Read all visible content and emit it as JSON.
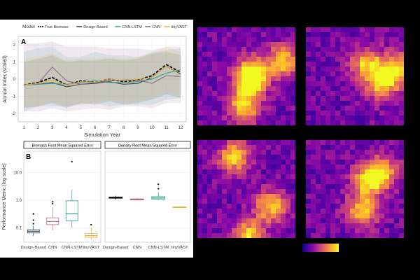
{
  "chart_data": [
    {
      "type": "line",
      "panel_label": "A",
      "legend_title": "Model",
      "xlabel": "Simulation Year",
      "ylabel": "Annual Index (scaled)",
      "x": [
        1,
        2,
        3,
        4,
        5,
        6,
        7,
        8,
        9,
        10,
        11,
        12
      ],
      "ylim": [
        -2.5,
        2.5
      ],
      "yticks": [
        -2,
        -1,
        0,
        1,
        2
      ],
      "series": [
        {
          "name": "True Biomass",
          "color": "#000000",
          "dashed": true,
          "values": [
            -0.35,
            -0.2,
            0.1,
            -0.35,
            -0.1,
            -0.2,
            0.0,
            -0.15,
            -0.05,
            0.2,
            0.85,
            0.4
          ],
          "band": null
        },
        {
          "name": "Design-Based",
          "color": "#2a3b4c",
          "dashed": false,
          "values": [
            -0.35,
            -0.3,
            -0.2,
            -0.45,
            -0.3,
            -0.25,
            -0.15,
            -0.3,
            -0.25,
            0.1,
            0.75,
            0.3
          ],
          "band": [
            [
              -1.7,
              1.0
            ],
            [
              -1.6,
              1.2
            ],
            [
              -1.4,
              1.4
            ],
            [
              -1.7,
              1.0
            ],
            [
              -1.4,
              1.1
            ],
            [
              -1.5,
              1.1
            ],
            [
              -1.3,
              1.2
            ],
            [
              -1.5,
              1.1
            ],
            [
              -1.4,
              1.2
            ],
            [
              -1.2,
              1.5
            ],
            [
              -0.9,
              1.6
            ],
            [
              -1.1,
              1.4
            ]
          ]
        },
        {
          "name": "CNN-LSTM",
          "color": "#2e9c8f",
          "dashed": false,
          "values": [
            -0.35,
            -0.3,
            -0.25,
            -0.3,
            -0.2,
            -0.1,
            -0.2,
            -0.2,
            -0.15,
            0.0,
            0.35,
            0.55
          ],
          "band": [
            [
              -1.9,
              1.6
            ],
            [
              -1.6,
              1.8
            ],
            [
              -1.6,
              1.9
            ],
            [
              -1.6,
              1.3
            ],
            [
              -1.5,
              1.3
            ],
            [
              -1.4,
              1.6
            ],
            [
              -1.6,
              1.4
            ],
            [
              -1.5,
              1.4
            ],
            [
              -1.5,
              1.3
            ],
            [
              -1.5,
              1.6
            ],
            [
              -1.2,
              1.7
            ],
            [
              -1.1,
              1.8
            ]
          ]
        },
        {
          "name": "CNN",
          "color": "#8c5a8a",
          "dashed": false,
          "values": [
            -0.35,
            -0.25,
            0.7,
            -0.1,
            -0.3,
            -0.2,
            -0.1,
            -0.05,
            -0.05,
            -0.25,
            0.2,
            0.15
          ],
          "band": [
            [
              -1.9,
              2.1
            ],
            [
              -1.9,
              2.1
            ],
            [
              -1.7,
              2.2
            ],
            [
              -1.9,
              1.9
            ],
            [
              -1.8,
              1.9
            ],
            [
              -1.7,
              1.9
            ],
            [
              -1.8,
              1.8
            ],
            [
              -1.6,
              1.8
            ],
            [
              -1.6,
              1.8
            ],
            [
              -1.7,
              1.7
            ],
            [
              -1.4,
              1.9
            ],
            [
              -1.4,
              1.9
            ]
          ]
        },
        {
          "name": "tinyVAST",
          "color": "#f0b030",
          "dashed": false,
          "values": [
            -0.35,
            -0.25,
            -0.05,
            -0.35,
            -0.15,
            -0.2,
            0.0,
            -0.1,
            0.0,
            0.1,
            0.75,
            0.35
          ],
          "band": [
            [
              -1.7,
              1.2
            ],
            [
              -1.6,
              1.3
            ],
            [
              -1.3,
              1.5
            ],
            [
              -1.6,
              1.1
            ],
            [
              -1.4,
              1.2
            ],
            [
              -1.4,
              1.2
            ],
            [
              -1.2,
              1.3
            ],
            [
              -1.4,
              1.2
            ],
            [
              -1.3,
              1.3
            ],
            [
              -1.1,
              1.5
            ],
            [
              -0.7,
              1.9
            ],
            [
              -1.0,
              1.6
            ]
          ]
        }
      ]
    },
    {
      "type": "box",
      "panel_label": "B",
      "ylabel": "Performance Metric (log scale)",
      "ylim_log": [
        0.03,
        60
      ],
      "yticks": [
        0.1,
        1.0,
        10.0
      ],
      "ytick_labels": [
        "0.1",
        "1.0",
        "10.0"
      ],
      "facets": [
        {
          "title": "Biomass Root Mean Squared Error",
          "categories": [
            "Design-Based",
            "CNN",
            "CNN-LSTM",
            "tinyVAST"
          ],
          "boxes": [
            {
              "name": "Design-Based",
              "color": "#2a3b4c",
              "min": 0.05,
              "q1": 0.065,
              "median": 0.075,
              "q3": 0.085,
              "max": 0.12,
              "outliers": [
                0.14,
                0.19,
                0.32
              ]
            },
            {
              "name": "CNN",
              "color": "#b5648a",
              "min": 0.08,
              "q1": 0.13,
              "median": 0.17,
              "q3": 0.23,
              "max": 0.55,
              "outliers": [
                0.75,
                0.88
              ]
            },
            {
              "name": "CNN-LSTM",
              "color": "#2e9c8f",
              "min": 0.1,
              "q1": 0.18,
              "median": 0.32,
              "q3": 0.95,
              "max": 2.4,
              "outliers": [
                25
              ]
            },
            {
              "name": "tinyVAST",
              "color": "#f0b030",
              "min": 0.035,
              "q1": 0.045,
              "median": 0.052,
              "q3": 0.062,
              "max": 0.1,
              "outliers": [
                0.13
              ]
            }
          ]
        },
        {
          "title": "Density Root Mean Squared Error",
          "categories": [
            "Design-Based",
            "CNN",
            "CNN-LSTM",
            "tinyVAST"
          ],
          "boxes": [
            {
              "name": "Design-Based",
              "color": "#000000",
              "min": 1.05,
              "q1": 1.18,
              "median": 1.24,
              "q3": 1.3,
              "max": 1.45,
              "outliers": []
            },
            {
              "name": "CNN",
              "color": "#b5648a",
              "min": 1.0,
              "q1": 1.02,
              "median": 1.07,
              "q3": 1.12,
              "max": 1.2,
              "outliers": []
            },
            {
              "name": "CNN-LSTM",
              "color": "#2e9c8f",
              "min": 1.0,
              "q1": 1.08,
              "median": 1.2,
              "q3": 1.35,
              "max": 2.0,
              "outliers": [
                2.6,
                3.8
              ]
            },
            {
              "name": "tinyVAST",
              "color": "#f0b030",
              "min": 0.53,
              "q1": 0.55,
              "median": 0.56,
              "q3": 0.57,
              "max": 0.59,
              "outliers": []
            }
          ]
        }
      ]
    },
    {
      "type": "heatmap",
      "colormap": "plasma",
      "panels": [
        {
          "name": "map-top-left",
          "seed": 7,
          "hot": [
            [
              0.85,
              0.32
            ],
            [
              0.55,
              0.42
            ],
            [
              0.45,
              0.8
            ],
            [
              0.5,
              0.55
            ]
          ]
        },
        {
          "name": "map-top-right",
          "seed": 19,
          "hot": [
            [
              0.9,
              0.4
            ],
            [
              0.75,
              0.55
            ],
            [
              0.6,
              0.35
            ]
          ]
        },
        {
          "name": "map-bottom-left",
          "seed": 31,
          "hot": [
            [
              0.35,
              0.15
            ],
            [
              0.72,
              0.65
            ],
            [
              0.5,
              0.95
            ]
          ]
        },
        {
          "name": "map-bottom-right",
          "seed": 43,
          "hot": [
            [
              0.6,
              0.4
            ],
            [
              0.75,
              0.3
            ],
            [
              0.55,
              0.7
            ]
          ]
        }
      ]
    }
  ]
}
